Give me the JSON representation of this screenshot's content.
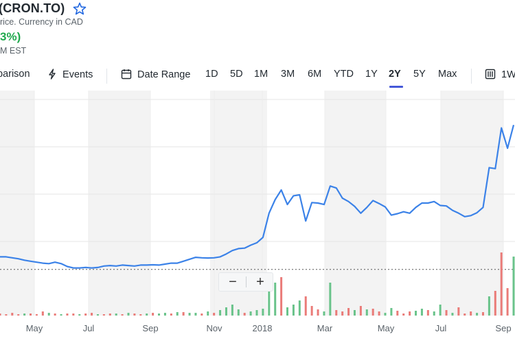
{
  "header": {
    "title": "(CRON.TO)",
    "subtitle": "rice. Currency in CAD",
    "change": "3%)",
    "time_note": "M EST"
  },
  "toolbar": {
    "comparison": "parison",
    "events": "Events",
    "date_range": "Date Range",
    "ranges": [
      "1D",
      "5D",
      "1M",
      "3M",
      "6M",
      "YTD",
      "1Y",
      "2Y",
      "5Y",
      "Max"
    ],
    "active_range": "2Y",
    "interval": "1W"
  },
  "zoom": {
    "minus": "−",
    "plus": "+"
  },
  "colors": {
    "line": "#3b82e8",
    "up": "#69c38a",
    "down": "#ea7b78",
    "shade": "#f3f3f3",
    "accent": "#4458d8"
  },
  "chart_data": {
    "type": "line",
    "x_tick_labels": [
      "May",
      "Jul",
      "Sep",
      "Nov",
      "2018",
      "Mar",
      "May",
      "Jul",
      "Sep"
    ],
    "grid": true,
    "series": [
      {
        "values": [
          0.62,
          0.62,
          0.61,
          0.6,
          0.585,
          0.575,
          0.565,
          0.555,
          0.55,
          0.565,
          0.55,
          0.52,
          0.505,
          0.505,
          0.51,
          0.505,
          0.51,
          0.525,
          0.53,
          0.525,
          0.535,
          0.53,
          0.525,
          0.535,
          0.535,
          0.538,
          0.535,
          0.545,
          0.555,
          0.555,
          0.575,
          0.595,
          0.615,
          0.61,
          0.608,
          0.61,
          0.62,
          0.65,
          0.685,
          0.705,
          0.71,
          0.74,
          0.765,
          0.82,
          1.07,
          1.21,
          1.31,
          1.16,
          1.25,
          1.26,
          0.99,
          1.18,
          1.175,
          1.16,
          1.35,
          1.33,
          1.225,
          1.19,
          1.14,
          1.07,
          1.13,
          1.2,
          1.17,
          1.135,
          1.05,
          1.065,
          1.085,
          1.07,
          1.13,
          1.175,
          1.175,
          1.19,
          1.15,
          1.145,
          1.1,
          1.07,
          1.035,
          1.045,
          1.075,
          1.13,
          1.54,
          1.53,
          1.95,
          1.74,
          1.98
        ]
      }
    ],
    "volume": [
      {
        "v": 3,
        "up": false
      },
      {
        "v": 2,
        "up": false
      },
      {
        "v": 4,
        "up": false
      },
      {
        "v": 2,
        "up": false
      },
      {
        "v": 3,
        "up": true
      },
      {
        "v": 3,
        "up": false
      },
      {
        "v": 2,
        "up": false
      },
      {
        "v": 6,
        "up": false
      },
      {
        "v": 4,
        "up": true
      },
      {
        "v": 3,
        "up": false
      },
      {
        "v": 2,
        "up": true
      },
      {
        "v": 3,
        "up": false
      },
      {
        "v": 3,
        "up": false
      },
      {
        "v": 2,
        "up": true
      },
      {
        "v": 3,
        "up": false
      },
      {
        "v": 4,
        "up": false
      },
      {
        "v": 2,
        "up": true
      },
      {
        "v": 2,
        "up": false
      },
      {
        "v": 3,
        "up": false
      },
      {
        "v": 3,
        "up": true
      },
      {
        "v": 2,
        "up": false
      },
      {
        "v": 4,
        "up": true
      },
      {
        "v": 3,
        "up": false
      },
      {
        "v": 2,
        "up": false
      },
      {
        "v": 3,
        "up": true
      },
      {
        "v": 4,
        "up": false
      },
      {
        "v": 3,
        "up": true
      },
      {
        "v": 4,
        "up": true
      },
      {
        "v": 3,
        "up": false
      },
      {
        "v": 5,
        "up": true
      },
      {
        "v": 5,
        "up": false
      },
      {
        "v": 4,
        "up": true
      },
      {
        "v": 4,
        "up": true
      },
      {
        "v": 3,
        "up": false
      },
      {
        "v": 6,
        "up": true
      },
      {
        "v": 4,
        "up": false
      },
      {
        "v": 8,
        "up": true
      },
      {
        "v": 12,
        "up": true
      },
      {
        "v": 16,
        "up": true
      },
      {
        "v": 9,
        "up": true
      },
      {
        "v": 4,
        "up": false
      },
      {
        "v": 6,
        "up": true
      },
      {
        "v": 8,
        "up": true
      },
      {
        "v": 10,
        "up": true
      },
      {
        "v": 40,
        "up": true
      },
      {
        "v": 48,
        "up": true
      },
      {
        "v": 56,
        "up": false
      },
      {
        "v": 12,
        "up": true
      },
      {
        "v": 16,
        "up": true
      },
      {
        "v": 22,
        "up": true
      },
      {
        "v": 28,
        "up": false
      },
      {
        "v": 14,
        "up": false
      },
      {
        "v": 9,
        "up": false
      },
      {
        "v": 6,
        "up": true
      },
      {
        "v": 48,
        "up": true
      },
      {
        "v": 8,
        "up": false
      },
      {
        "v": 6,
        "up": false
      },
      {
        "v": 11,
        "up": false
      },
      {
        "v": 8,
        "up": true
      },
      {
        "v": 14,
        "up": false
      },
      {
        "v": 9,
        "up": true
      },
      {
        "v": 10,
        "up": false
      },
      {
        "v": 6,
        "up": false
      },
      {
        "v": 4,
        "up": true
      },
      {
        "v": 11,
        "up": true
      },
      {
        "v": 7,
        "up": false
      },
      {
        "v": 3,
        "up": false
      },
      {
        "v": 6,
        "up": false
      },
      {
        "v": 7,
        "up": true
      },
      {
        "v": 10,
        "up": true
      },
      {
        "v": 8,
        "up": false
      },
      {
        "v": 6,
        "up": true
      },
      {
        "v": 16,
        "up": true
      },
      {
        "v": 8,
        "up": false
      },
      {
        "v": 4,
        "up": true
      },
      {
        "v": 12,
        "up": false
      },
      {
        "v": 3,
        "up": false
      },
      {
        "v": 6,
        "up": false
      },
      {
        "v": 4,
        "up": true
      },
      {
        "v": 5,
        "up": false
      },
      {
        "v": 28,
        "up": true
      },
      {
        "v": 36,
        "up": false
      },
      {
        "v": 92,
        "up": false
      },
      {
        "v": 40,
        "up": false
      },
      {
        "v": 86,
        "up": true
      }
    ],
    "reference_value": 0.49
  }
}
